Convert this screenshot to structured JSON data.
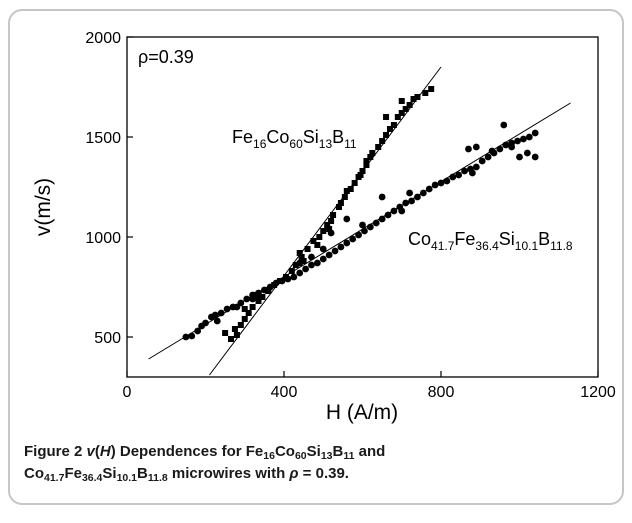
{
  "chart_data": {
    "type": "scatter",
    "annotation": "ρ=0.39",
    "xlabel": "H (A/m)",
    "ylabel": "v(m/s)",
    "xlim": [
      0,
      1200
    ],
    "ylim": [
      300,
      2000
    ],
    "xticks": [
      0,
      400,
      800,
      1200
    ],
    "yticks": [
      500,
      1000,
      1500,
      2000
    ],
    "series": [
      {
        "name": "Fe16Co60Si13B11",
        "label_parts": [
          [
            "Fe",
            ""
          ],
          [
            "16",
            "sub"
          ],
          [
            "Co",
            ""
          ],
          [
            "60",
            "sub"
          ],
          [
            "Si",
            ""
          ],
          [
            "13",
            "sub"
          ],
          [
            "B",
            ""
          ],
          [
            "11",
            "sub"
          ]
        ],
        "marker": "square",
        "fit": {
          "x": [
            210,
            800
          ],
          "y": [
            310,
            1850
          ]
        },
        "points": [
          [
            265,
            490
          ],
          [
            280,
            510
          ],
          [
            275,
            540
          ],
          [
            290,
            560
          ],
          [
            300,
            590
          ],
          [
            310,
            620
          ],
          [
            320,
            650
          ],
          [
            335,
            680
          ],
          [
            345,
            700
          ],
          [
            360,
            730
          ],
          [
            375,
            760
          ],
          [
            390,
            780
          ],
          [
            405,
            800
          ],
          [
            420,
            830
          ],
          [
            430,
            860
          ],
          [
            445,
            900
          ],
          [
            460,
            940
          ],
          [
            475,
            980
          ],
          [
            490,
            1000
          ],
          [
            500,
            1030
          ],
          [
            510,
            1060
          ],
          [
            520,
            1080
          ],
          [
            525,
            1110
          ],
          [
            540,
            1150
          ],
          [
            545,
            1170
          ],
          [
            555,
            1200
          ],
          [
            570,
            1240
          ],
          [
            580,
            1270
          ],
          [
            590,
            1300
          ],
          [
            600,
            1330
          ],
          [
            610,
            1360
          ],
          [
            620,
            1400
          ],
          [
            625,
            1420
          ],
          [
            640,
            1450
          ],
          [
            650,
            1480
          ],
          [
            660,
            1510
          ],
          [
            670,
            1540
          ],
          [
            680,
            1560
          ],
          [
            690,
            1600
          ],
          [
            700,
            1620
          ],
          [
            710,
            1640
          ],
          [
            720,
            1660
          ],
          [
            730,
            1690
          ],
          [
            740,
            1700
          ],
          [
            760,
            1720
          ],
          [
            775,
            1740
          ],
          [
            660,
            1600
          ],
          [
            700,
            1680
          ],
          [
            610,
            1380
          ],
          [
            560,
            1230
          ],
          [
            515,
            1040
          ],
          [
            485,
            960
          ],
          [
            450,
            880
          ],
          [
            330,
            710
          ],
          [
            300,
            640
          ],
          [
            250,
            520
          ],
          [
            440,
            920
          ],
          [
            595,
            1310
          ]
        ]
      },
      {
        "name": "Co41.7Fe36.4Si10.1B11.8",
        "label_parts": [
          [
            "Co",
            ""
          ],
          [
            "41.7",
            "sub"
          ],
          [
            "Fe",
            ""
          ],
          [
            "36.4",
            "sub"
          ],
          [
            "Si",
            ""
          ],
          [
            "10.1",
            "sub"
          ],
          [
            "B",
            ""
          ],
          [
            "11.8",
            "sub"
          ]
        ],
        "marker": "circle",
        "fit": {
          "x": [
            55,
            1130
          ],
          "y": [
            390,
            1670
          ]
        },
        "points": [
          [
            150,
            500
          ],
          [
            165,
            505
          ],
          [
            180,
            530
          ],
          [
            190,
            555
          ],
          [
            200,
            570
          ],
          [
            215,
            600
          ],
          [
            225,
            610
          ],
          [
            240,
            620
          ],
          [
            255,
            640
          ],
          [
            270,
            650
          ],
          [
            290,
            670
          ],
          [
            305,
            690
          ],
          [
            320,
            710
          ],
          [
            335,
            720
          ],
          [
            350,
            735
          ],
          [
            365,
            750
          ],
          [
            380,
            770
          ],
          [
            395,
            780
          ],
          [
            410,
            790
          ],
          [
            425,
            800
          ],
          [
            440,
            820
          ],
          [
            455,
            840
          ],
          [
            470,
            860
          ],
          [
            485,
            870
          ],
          [
            500,
            890
          ],
          [
            515,
            910
          ],
          [
            530,
            930
          ],
          [
            545,
            950
          ],
          [
            560,
            970
          ],
          [
            575,
            990
          ],
          [
            590,
            1010
          ],
          [
            605,
            1030
          ],
          [
            620,
            1050
          ],
          [
            635,
            1070
          ],
          [
            650,
            1090
          ],
          [
            665,
            1110
          ],
          [
            680,
            1130
          ],
          [
            695,
            1150
          ],
          [
            710,
            1170
          ],
          [
            725,
            1180
          ],
          [
            740,
            1200
          ],
          [
            755,
            1220
          ],
          [
            770,
            1240
          ],
          [
            785,
            1260
          ],
          [
            800,
            1270
          ],
          [
            815,
            1280
          ],
          [
            830,
            1300
          ],
          [
            845,
            1310
          ],
          [
            860,
            1330
          ],
          [
            875,
            1340
          ],
          [
            890,
            1350
          ],
          [
            905,
            1380
          ],
          [
            920,
            1400
          ],
          [
            935,
            1420
          ],
          [
            950,
            1440
          ],
          [
            965,
            1460
          ],
          [
            980,
            1470
          ],
          [
            995,
            1480
          ],
          [
            1010,
            1490
          ],
          [
            1025,
            1500
          ],
          [
            1040,
            1520
          ],
          [
            870,
            1440
          ],
          [
            890,
            1450
          ],
          [
            930,
            1430
          ],
          [
            960,
            1560
          ],
          [
            980,
            1450
          ],
          [
            1000,
            1400
          ],
          [
            1020,
            1420
          ],
          [
            1040,
            1400
          ],
          [
            880,
            1320
          ],
          [
            650,
            1200
          ],
          [
            700,
            1130
          ],
          [
            560,
            1090
          ],
          [
            520,
            1020
          ],
          [
            600,
            1060
          ],
          [
            320,
            690
          ],
          [
            280,
            650
          ],
          [
            230,
            580
          ],
          [
            500,
            940
          ],
          [
            470,
            900
          ],
          [
            440,
            870
          ],
          [
            720,
            1220
          ]
        ]
      }
    ]
  },
  "caption": {
    "label": "Figure 2",
    "func_var": "v",
    "func_arg": "H",
    "text1": " Dependences for Fe",
    "sub1": "16",
    "t_co": "Co",
    "sub2": "60",
    "t_si": "Si",
    "sub3": "13",
    "t_b": "B",
    "sub4": "11",
    "t_and": " and",
    "t2_co": "Co",
    "s5": "41.7",
    "t2_fe": "Fe",
    "s6": "36.4",
    "t2_si": "Si",
    "s7": "10.1",
    "t2_b": "B",
    "s8": "11.8",
    "t_micro": " microwires with ",
    "rho": "ρ",
    "t_eq": " = 0.39."
  }
}
